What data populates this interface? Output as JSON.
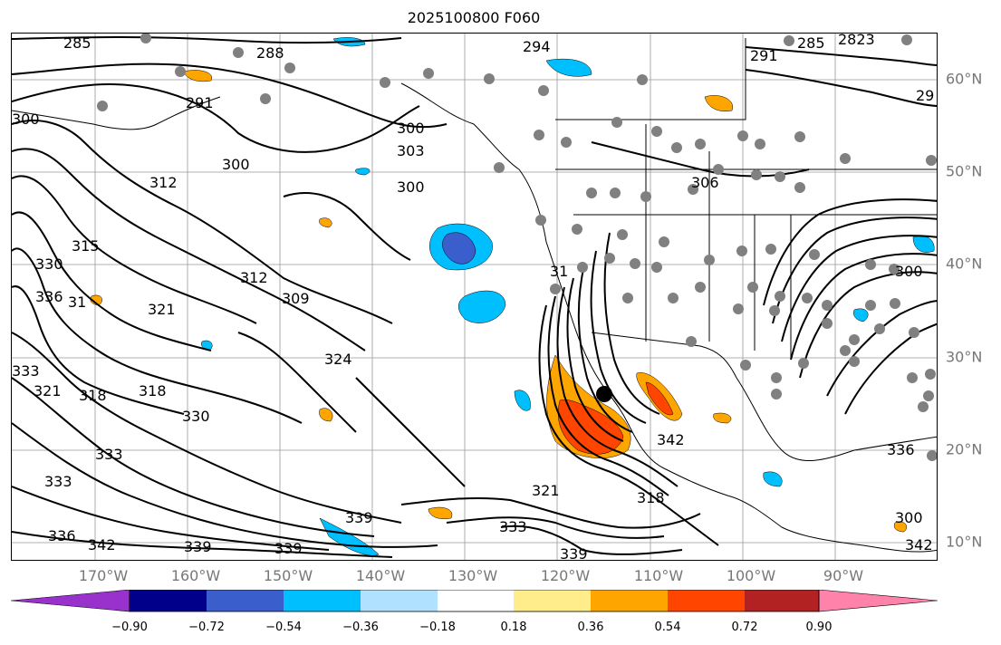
{
  "title": "2025100800 F060",
  "lon_labels": [
    "170°W",
    "160°W",
    "150°W",
    "140°W",
    "130°W",
    "120°W",
    "110°W",
    "100°W",
    "90°W"
  ],
  "lat_labels": [
    "60°N",
    "50°N",
    "40°N",
    "30°N",
    "20°N",
    "10°N"
  ],
  "colorbar": {
    "ticks": [
      "−0.90",
      "−0.72",
      "−0.54",
      "−0.36",
      "−0.18",
      "0.18",
      "0.36",
      "0.54",
      "0.72",
      "0.90"
    ],
    "colors": [
      "#9932cc",
      "#00008b",
      "#3a5fcd",
      "#00bfff",
      "#b0e2ff",
      "#ffffff",
      "#ffec8b",
      "#ffa500",
      "#ff4500",
      "#b22222",
      "#ff82ab"
    ]
  },
  "contour_labels": [
    "285",
    "288",
    "291",
    "294",
    "285",
    "2823",
    "29",
    "291",
    "300",
    "303",
    "300",
    "300",
    "312",
    "300",
    "306",
    "315",
    "330",
    "336",
    "31",
    "321",
    "309",
    "312",
    "300",
    "318",
    "318",
    "321",
    "324",
    "333",
    "330",
    "333",
    "333",
    "342",
    "336",
    "342",
    "339",
    "339",
    "339",
    "333",
    "321",
    "318",
    "342",
    "339",
    "336",
    "300",
    "31"
  ],
  "station_color": "#808080",
  "positive_shading_color": "#ff4500",
  "negative_shading_color": "#00bfff"
}
